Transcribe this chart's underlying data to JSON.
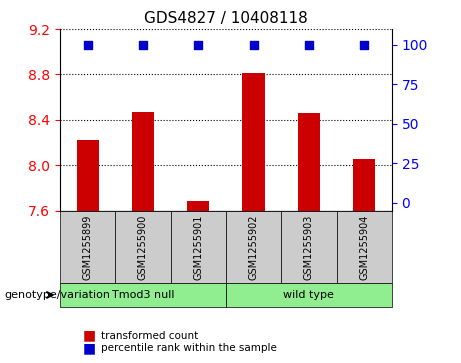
{
  "title": "GDS4827 / 10408118",
  "samples": [
    "GSM1255899",
    "GSM1255900",
    "GSM1255901",
    "GSM1255902",
    "GSM1255903",
    "GSM1255904"
  ],
  "bar_values": [
    8.22,
    8.47,
    7.68,
    8.81,
    8.46,
    8.05
  ],
  "percentile_values": [
    9.18,
    9.18,
    9.18,
    9.18,
    9.18,
    9.18
  ],
  "bar_color": "#cc0000",
  "percentile_color": "#0000cc",
  "ylim_left": [
    7.6,
    9.2
  ],
  "yticks_left": [
    7.6,
    8.0,
    8.4,
    8.8,
    9.2
  ],
  "yticks_right": [
    0,
    25,
    50,
    75,
    100
  ],
  "ylim_right": [
    0,
    100
  ],
  "groups": [
    {
      "label": "Tmod3 null",
      "indices": [
        0,
        1,
        2
      ],
      "color": "#90ee90"
    },
    {
      "label": "wild type",
      "indices": [
        3,
        4,
        5
      ],
      "color": "#90ee90"
    }
  ],
  "group_label_prefix": "genotype/variation",
  "legend_bar_label": "transformed count",
  "legend_dot_label": "percentile rank within the sample",
  "grid_color": "#000000",
  "background_color": "#ffffff",
  "tick_label_bg": "#cccccc"
}
